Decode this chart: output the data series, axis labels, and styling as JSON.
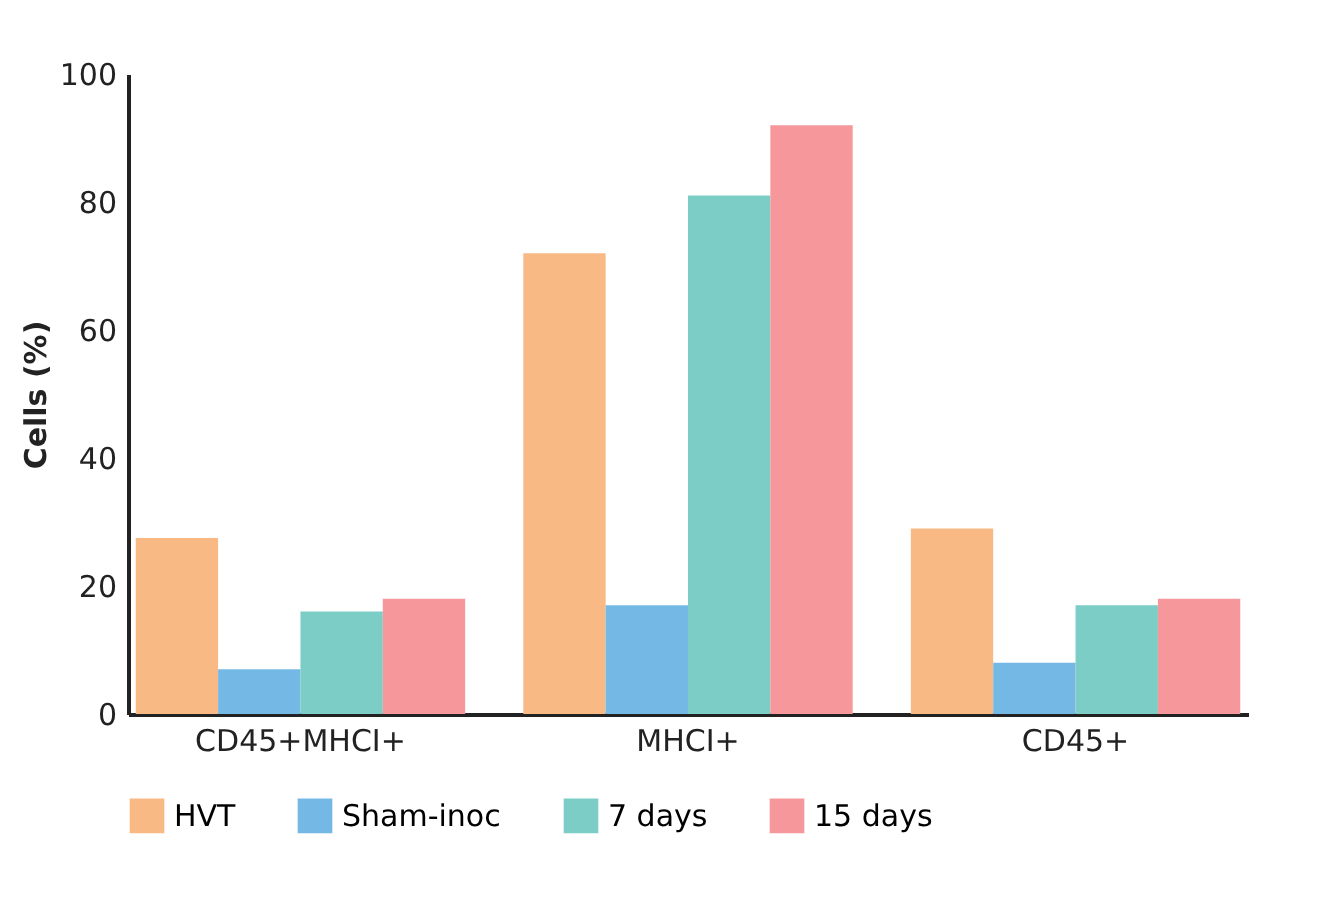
{
  "chart_data": {
    "type": "bar",
    "ylabel": "Cells (%)",
    "categories": [
      "CD45+MHCI+",
      "MHCI+",
      "CD45+"
    ],
    "series": [
      {
        "name": "HVT",
        "color": "#f9b985",
        "values": [
          27.5,
          72,
          29
        ]
      },
      {
        "name": "Sham-inoc",
        "color": "#74b9e6",
        "values": [
          7,
          17,
          8
        ]
      },
      {
        "name": "7 days",
        "color": "#7ccdc6",
        "values": [
          16,
          81,
          17
        ]
      },
      {
        "name": "15 days",
        "color": "#f5979b",
        "values": [
          18,
          92,
          18
        ]
      }
    ],
    "ylim": [
      0,
      100
    ],
    "yticks": [
      0,
      20,
      40,
      60,
      80,
      100
    ],
    "grid": false,
    "legend": "bottom"
  }
}
